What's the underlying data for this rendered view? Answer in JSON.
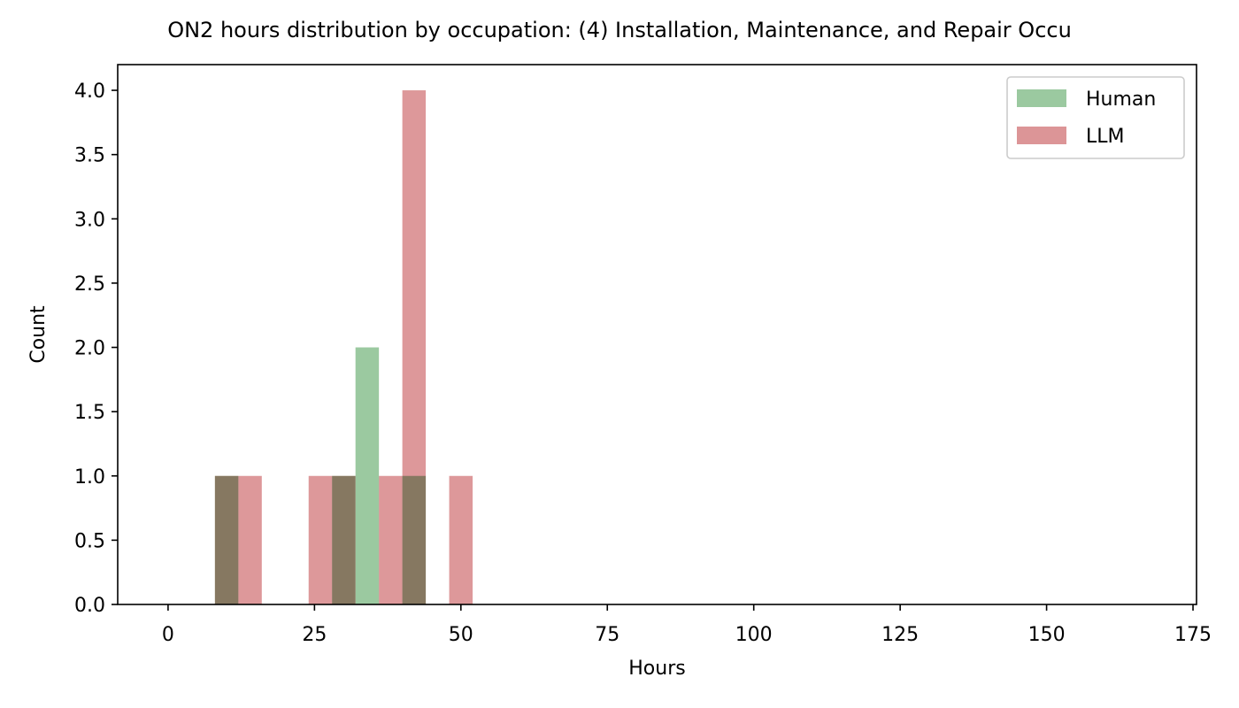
{
  "chart_data": {
    "type": "bar",
    "title": "ON2 hours distribution by occupation: (4) Installation, Maintenance, and Repair Occu",
    "xlabel": "Hours",
    "ylabel": "Count",
    "xlim": [
      -8.6,
      175.6
    ],
    "ylim": [
      0,
      4.2
    ],
    "xticks": [
      0,
      25,
      50,
      75,
      100,
      125,
      150,
      175
    ],
    "yticks": [
      0.0,
      0.5,
      1.0,
      1.5,
      2.0,
      2.5,
      3.0,
      3.5,
      4.0
    ],
    "bin_width": 4,
    "legend_position": "top-right",
    "series": [
      {
        "name": "Human",
        "color": "#9bc9a0",
        "bins": [
          {
            "x0": 8,
            "x1": 12,
            "count": 1
          },
          {
            "x0": 28,
            "x1": 32,
            "count": 1
          },
          {
            "x0": 32,
            "x1": 36,
            "count": 2
          },
          {
            "x0": 40,
            "x1": 44,
            "count": 1
          }
        ]
      },
      {
        "name": "LLM",
        "color": "#dc9597",
        "bins": [
          {
            "x0": 8,
            "x1": 12,
            "count": 1
          },
          {
            "x0": 12,
            "x1": 16,
            "count": 1
          },
          {
            "x0": 24,
            "x1": 28,
            "count": 1
          },
          {
            "x0": 28,
            "x1": 32,
            "count": 1
          },
          {
            "x0": 36,
            "x1": 40,
            "count": 1
          },
          {
            "x0": 40,
            "x1": 44,
            "count": 4
          },
          {
            "x0": 48,
            "x1": 52,
            "count": 1
          }
        ]
      }
    ]
  }
}
